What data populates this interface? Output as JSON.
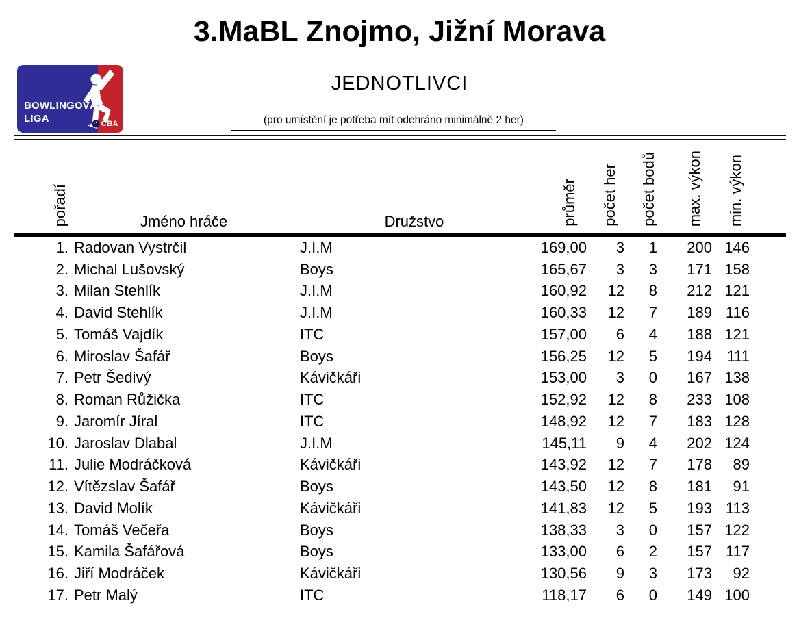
{
  "page": {
    "title": "3.MaBL Znojmo, Jižní Morava",
    "subtitle": "JEDNOTLIVCI",
    "note": "(pro umístění je potřeba mít odehráno minimálně 2 her)"
  },
  "logo": {
    "line1": "BOWLINGOVÁ",
    "line2": "LIGA",
    "badge": "ČBA",
    "colors": {
      "blue": "#2e2e96",
      "red": "#c3242b",
      "figure": "#ffffff"
    }
  },
  "table": {
    "headers": {
      "rank": "pořadí",
      "name": "Jméno hráče",
      "team": "Družstvo",
      "average": "průměr",
      "games": "počet her",
      "points": "počet bodů",
      "max": "max. výkon",
      "min": "min. výkon"
    },
    "rows": [
      {
        "rank": "1.",
        "name": "Radovan Vystrčil",
        "team": "J.I.M",
        "average": "169,00",
        "games": "3",
        "points": "1",
        "max": "200",
        "min": "146"
      },
      {
        "rank": "2.",
        "name": "Michal Lušovský",
        "team": "Boys",
        "average": "165,67",
        "games": "3",
        "points": "3",
        "max": "171",
        "min": "158"
      },
      {
        "rank": "3.",
        "name": "Milan Stehlík",
        "team": "J.I.M",
        "average": "160,92",
        "games": "12",
        "points": "8",
        "max": "212",
        "min": "121"
      },
      {
        "rank": "4.",
        "name": "David Stehlík",
        "team": "J.I.M",
        "average": "160,33",
        "games": "12",
        "points": "7",
        "max": "189",
        "min": "116"
      },
      {
        "rank": "5.",
        "name": "Tomáš Vajdík",
        "team": "ITC",
        "average": "157,00",
        "games": "6",
        "points": "4",
        "max": "188",
        "min": "121"
      },
      {
        "rank": "6.",
        "name": "Miroslav Šafář",
        "team": "Boys",
        "average": "156,25",
        "games": "12",
        "points": "5",
        "max": "194",
        "min": "111"
      },
      {
        "rank": "7.",
        "name": "Petr Šedivý",
        "team": "Kávičkáři",
        "average": "153,00",
        "games": "3",
        "points": "0",
        "max": "167",
        "min": "138"
      },
      {
        "rank": "8.",
        "name": "Roman Růžička",
        "team": "ITC",
        "average": "152,92",
        "games": "12",
        "points": "8",
        "max": "233",
        "min": "108"
      },
      {
        "rank": "9.",
        "name": "Jaromír Jíral",
        "team": "ITC",
        "average": "148,92",
        "games": "12",
        "points": "7",
        "max": "183",
        "min": "128"
      },
      {
        "rank": "10.",
        "name": "Jaroslav Dlabal",
        "team": "J.I.M",
        "average": "145,11",
        "games": "9",
        "points": "4",
        "max": "202",
        "min": "124"
      },
      {
        "rank": "11.",
        "name": "Julie Modráčková",
        "team": "Kávičkáři",
        "average": "143,92",
        "games": "12",
        "points": "7",
        "max": "178",
        "min": "89"
      },
      {
        "rank": "12.",
        "name": "Vítězslav Šafář",
        "team": "Boys",
        "average": "143,50",
        "games": "12",
        "points": "8",
        "max": "181",
        "min": "91"
      },
      {
        "rank": "13.",
        "name": "David Molík",
        "team": "Kávičkáři",
        "average": "141,83",
        "games": "12",
        "points": "5",
        "max": "193",
        "min": "113"
      },
      {
        "rank": "14.",
        "name": "Tomáš Večeřa",
        "team": "Boys",
        "average": "138,33",
        "games": "3",
        "points": "0",
        "max": "157",
        "min": "122"
      },
      {
        "rank": "15.",
        "name": "Kamila Šafářová",
        "team": "Boys",
        "average": "133,00",
        "games": "6",
        "points": "2",
        "max": "157",
        "min": "117"
      },
      {
        "rank": "16.",
        "name": "Jiří Modráček",
        "team": "Kávičkáři",
        "average": "130,56",
        "games": "9",
        "points": "3",
        "max": "173",
        "min": "92"
      },
      {
        "rank": "17.",
        "name": "Petr Malý",
        "team": "ITC",
        "average": "118,17",
        "games": "6",
        "points": "0",
        "max": "149",
        "min": "100"
      }
    ]
  }
}
